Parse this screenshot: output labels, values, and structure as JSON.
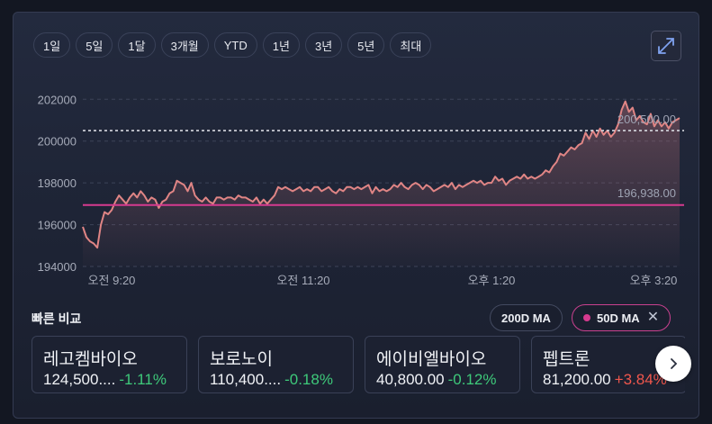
{
  "range_tabs": [
    {
      "label": "1일",
      "active": true
    },
    {
      "label": "5일",
      "active": false
    },
    {
      "label": "1달",
      "active": false
    },
    {
      "label": "3개월",
      "active": false
    },
    {
      "label": "YTD",
      "active": false
    },
    {
      "label": "1년",
      "active": false
    },
    {
      "label": "3년",
      "active": false
    },
    {
      "label": "5년",
      "active": false
    },
    {
      "label": "최대",
      "active": false
    }
  ],
  "expand_icon": "expand-icon",
  "chart_data": {
    "type": "area",
    "y_ticks": [
      "202000",
      "200000",
      "198000",
      "196000",
      "194000"
    ],
    "ylim": [
      194000,
      202700
    ],
    "x_ticks": [
      "오전 9:20",
      "오전 11:20",
      "오후 1:20",
      "오후 3:20"
    ],
    "prev_close_label": "200,500.00",
    "prev_close": 200500,
    "ma_label": "196,938.00",
    "ma_value": 196938,
    "line_color": "#e08585",
    "ma_color": "#d63a8f",
    "grid": "horizontal dashed",
    "values": [
      195900,
      195400,
      195200,
      195100,
      194900,
      196000,
      196600,
      196500,
      196700,
      197100,
      197400,
      197200,
      197000,
      197300,
      197500,
      197300,
      197600,
      197400,
      197100,
      197300,
      197200,
      196800,
      197100,
      197200,
      197500,
      197600,
      198100,
      198000,
      197900,
      197600,
      198000,
      197400,
      197200,
      197100,
      197300,
      197100,
      197000,
      197300,
      197300,
      197200,
      197300,
      197300,
      197200,
      197400,
      197300,
      197300,
      197200,
      197100,
      197300,
      197000,
      197200,
      197000,
      197200,
      197400,
      197800,
      197700,
      197800,
      197700,
      197600,
      197700,
      197800,
      197600,
      197700,
      197600,
      197800,
      197800,
      197600,
      197700,
      197800,
      197600,
      197500,
      197700,
      197600,
      197800,
      197800,
      197700,
      197800,
      197700,
      197800,
      197900,
      197500,
      197800,
      197600,
      197700,
      197600,
      197700,
      197900,
      197800,
      198000,
      197800,
      197700,
      197900,
      198000,
      197900,
      197700,
      197900,
      197800,
      197600,
      197700,
      197800,
      197900,
      197800,
      198000,
      197700,
      197900,
      197800,
      197900,
      198000,
      198100,
      198000,
      198100,
      197900,
      198000,
      198000,
      198300,
      198100,
      198200,
      197900,
      198100,
      198200,
      198300,
      198200,
      198400,
      198200,
      198300,
      198200,
      198300,
      198400,
      198600,
      198500,
      198800,
      199000,
      199400,
      199300,
      199500,
      199700,
      199600,
      199800,
      199900,
      200400,
      200100,
      200500,
      200200,
      200600,
      200300,
      200500,
      200200,
      200400,
      200800,
      201500,
      201900,
      201400,
      201600,
      201000,
      201200,
      200900,
      200800,
      201300,
      200700,
      201000,
      200700,
      200900,
      200600,
      200900,
      201000,
      201100
    ],
    "axis_start": "오전 9:00",
    "axis_end": "오후 3:30"
  },
  "quick_compare": {
    "title": "빠른 비교",
    "ma200_label": "200D MA",
    "ma50_label": "50D MA",
    "items": [
      {
        "name": "레고켐바이오",
        "price": "124,500....",
        "change": "-1.11%",
        "dir": "down"
      },
      {
        "name": "보로노이",
        "price": "110,400....",
        "change": "-0.18%",
        "dir": "down"
      },
      {
        "name": "에이비엘바이오",
        "price": "40,800.00",
        "change": "-0.12%",
        "dir": "down"
      },
      {
        "name": "펩트론",
        "price": "81,200.00",
        "change": "+3.84%",
        "dir": "up"
      }
    ],
    "next_icon": "chevron-right-icon"
  }
}
